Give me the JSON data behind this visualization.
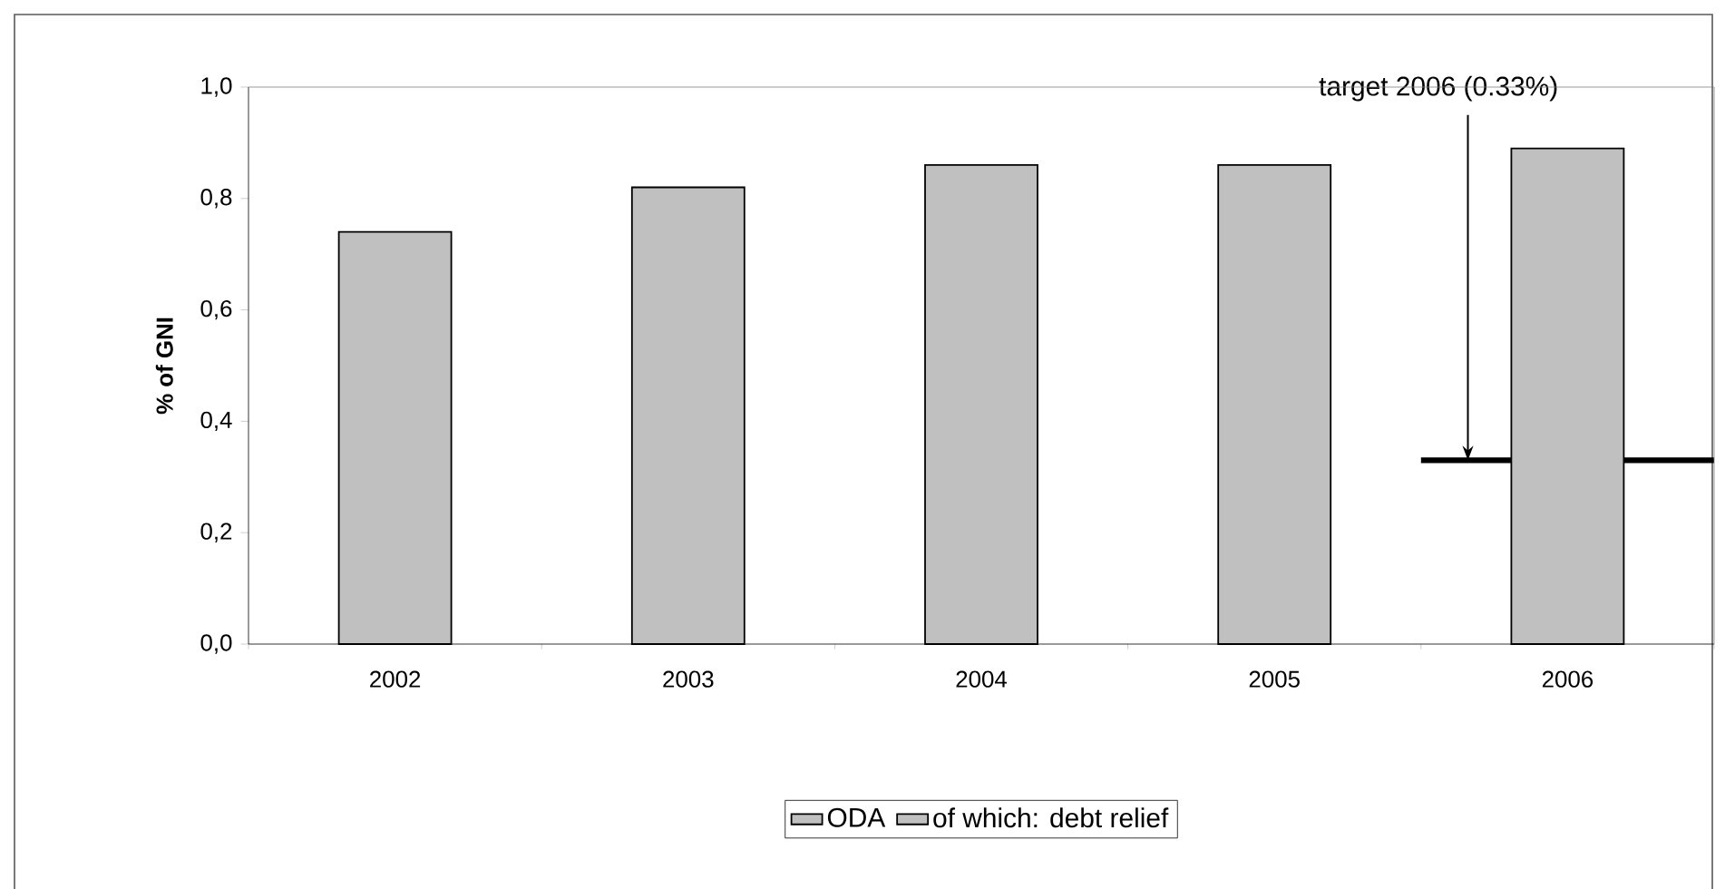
{
  "chart_data": {
    "type": "bar",
    "ylabel": "% of GNI",
    "categories": [
      "2002",
      "2003",
      "2004",
      "2005",
      "2006"
    ],
    "series": [
      {
        "name": "ODA",
        "color": "#c0c0c0",
        "values": [
          0.74,
          0.82,
          0.86,
          0.86,
          0.89
        ]
      },
      {
        "name": "of which: debt relief",
        "color": "#c0c0c0",
        "values": [
          null,
          null,
          null,
          null,
          null
        ]
      }
    ],
    "stacked": true,
    "ylim": [
      0,
      1
    ],
    "yticks": [
      {
        "value": 0,
        "label": "0,0"
      },
      {
        "value": 0.2,
        "label": "0,2"
      },
      {
        "value": 0.4,
        "label": "0,4"
      },
      {
        "value": 0.6,
        "label": "0,6"
      },
      {
        "value": 0.8,
        "label": "0,8"
      },
      {
        "value": 1,
        "label": "1,0"
      }
    ],
    "ref_lines": [
      {
        "axis": "y",
        "value": 0.33,
        "label": "target 2006 (0.33%)",
        "color": "#000000"
      }
    ],
    "grid": false,
    "legend": "bottom"
  }
}
